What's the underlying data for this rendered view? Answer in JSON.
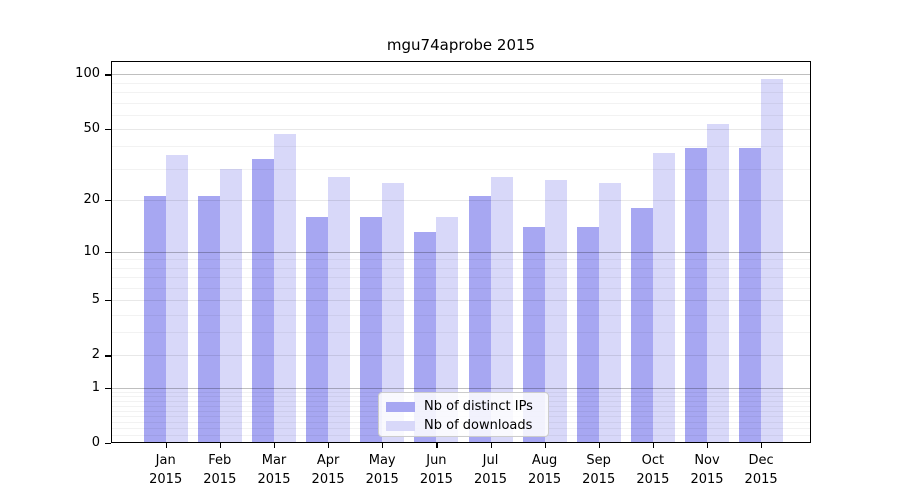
{
  "chart_data": {
    "type": "bar",
    "title": "mgu74aprobe 2015",
    "categories": [
      "Jan",
      "Feb",
      "Mar",
      "Apr",
      "May",
      "Jun",
      "Jul",
      "Aug",
      "Sep",
      "Oct",
      "Nov",
      "Dec"
    ],
    "year_label": "2015",
    "series": [
      {
        "name": "Nb of distinct IPs",
        "color": "#a7a7f2",
        "values": [
          21,
          21,
          34,
          16,
          16,
          13,
          21,
          14,
          14,
          18,
          39,
          39
        ]
      },
      {
        "name": "Nb of downloads",
        "color": "#d8d8f9",
        "values": [
          36,
          30,
          47,
          27,
          25,
          16,
          27,
          26,
          25,
          37,
          53,
          95
        ]
      }
    ],
    "y_axis": {
      "scale": "log10(1+x)",
      "tick_values": [
        0,
        1,
        2,
        5,
        10,
        20,
        50,
        100
      ],
      "minor_gridlines": [
        0.1,
        0.2,
        0.3,
        0.4,
        0.5,
        0.6,
        0.7,
        0.8,
        0.9,
        3,
        4,
        6,
        7,
        8,
        9,
        30,
        40,
        60,
        70,
        80,
        90
      ],
      "max_value": 118
    },
    "x_axis": {
      "label_lines": 2
    },
    "legend_position": "bottom-center",
    "grid": true,
    "colors": {
      "frame": "#000000",
      "decade_gridline": "rgba(0,0,0,0.25)",
      "major_gridline": "rgba(0,0,0,0.09)",
      "minor_gridline": "rgba(0,0,0,0.05)",
      "legend_border": "#cccccc"
    }
  }
}
